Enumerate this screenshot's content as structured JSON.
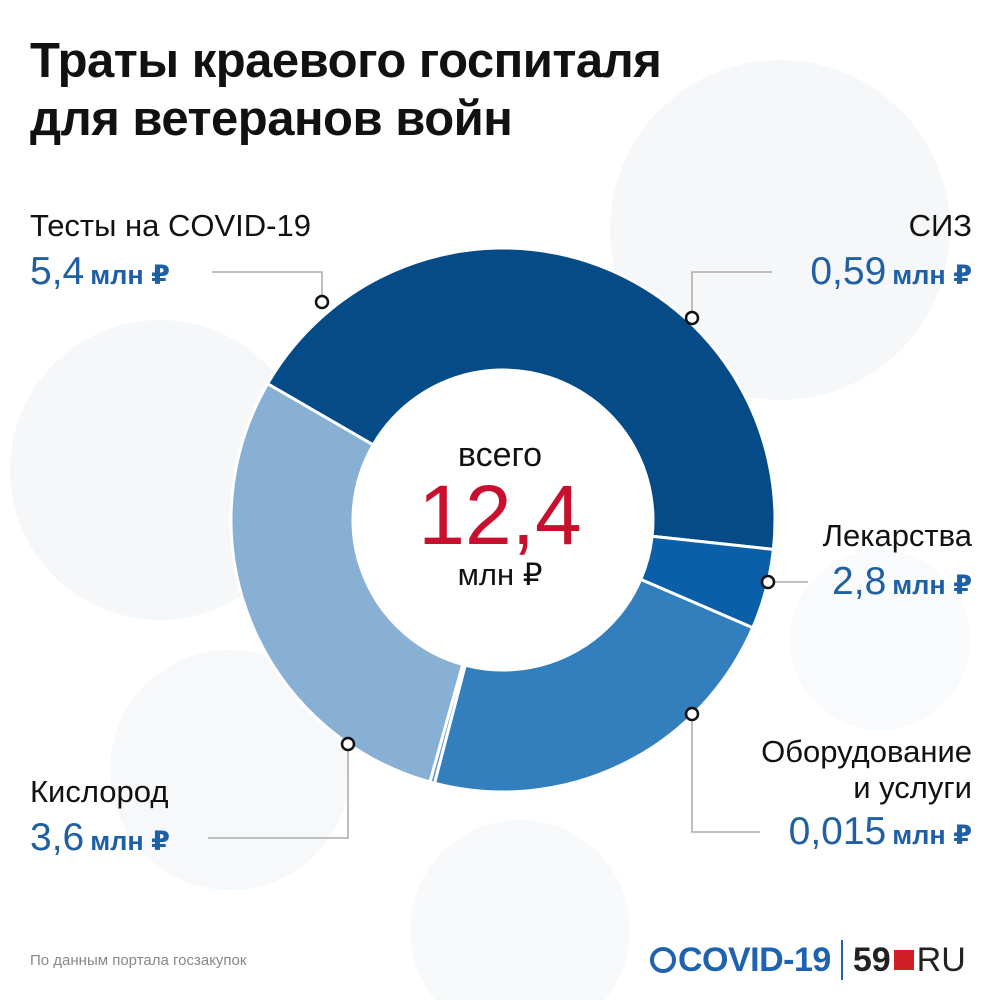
{
  "title_line1": "Траты краевого госпиталя",
  "title_line2": "для ветеранов войн",
  "center": {
    "word": "всего",
    "total": "12,4",
    "unit": "млн ₽"
  },
  "chart_data": {
    "type": "pie",
    "title": "Траты краевого госпиталя для ветеранов войн",
    "unit": "млн ₽",
    "total": 12.4,
    "series": [
      {
        "name": "Тесты на COVID-19",
        "value": 5.4,
        "label": "5,4",
        "color": "#044b88"
      },
      {
        "name": "СИЗ",
        "value": 0.59,
        "label": "0,59",
        "color": "#0a5fa8"
      },
      {
        "name": "Лекарства",
        "value": 2.8,
        "label": "2,8",
        "color": "#337fbe"
      },
      {
        "name": "Оборудование и услуги",
        "value": 0.015,
        "label": "0,015",
        "color": "#5a97cc"
      },
      {
        "name": "Кислород",
        "value": 3.6,
        "label": "3,6",
        "color": "#88b0d5"
      }
    ]
  },
  "labels": {
    "tests": {
      "name": "Тесты на COVID-19",
      "value": "5,4",
      "unit": "млн ₽"
    },
    "siz": {
      "name": "СИЗ",
      "value": "0,59",
      "unit": "млн ₽"
    },
    "drugs": {
      "name": "Лекарства",
      "value": "2,8",
      "unit": "млн ₽"
    },
    "equipment": {
      "name1": "Оборудование",
      "name2": "и услуги",
      "value": "0,015",
      "unit": "млн ₽"
    },
    "oxygen": {
      "name": "Кислород",
      "value": "3,6",
      "unit": "млн ₽"
    }
  },
  "source": "По данным портала госзакупок",
  "logo": {
    "covid": "COVID-19",
    "num": "59",
    "ru": "RU"
  }
}
